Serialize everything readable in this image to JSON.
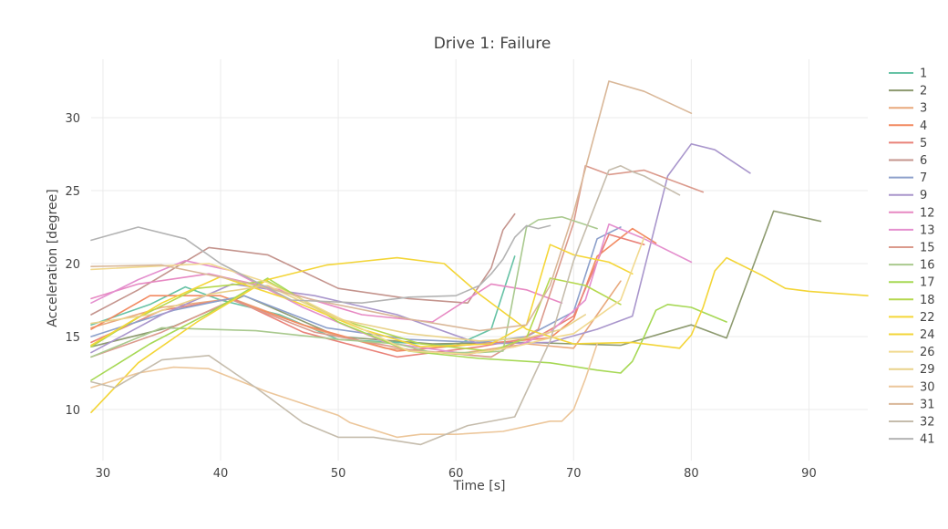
{
  "chart_data": {
    "type": "line",
    "title": "Drive 1: Failure",
    "xlabel": "Time [s]",
    "ylabel": "Acceleration [degree]",
    "xlim": [
      29,
      95
    ],
    "ylim": [
      6.5,
      34
    ],
    "xticks": [
      30,
      40,
      50,
      60,
      70,
      80,
      90
    ],
    "yticks": [
      10,
      15,
      20,
      25,
      30
    ],
    "grid": true,
    "legend": "right",
    "series": [
      {
        "name": "1",
        "color": "#66c2a5",
        "x": [
          29,
          34,
          37,
          40,
          45,
          50,
          55,
          60,
          63,
          65
        ],
        "y": [
          15.8,
          17.2,
          18.4,
          17.5,
          16.5,
          14.8,
          14.6,
          14.4,
          15.5,
          20.5
        ]
      },
      {
        "name": "2",
        "color": "#8d9a6f",
        "x": [
          29,
          36,
          42,
          50,
          58,
          66,
          70,
          74,
          80,
          83,
          87,
          91
        ],
        "y": [
          14.3,
          15.7,
          17.8,
          15.0,
          14.5,
          14.6,
          14.5,
          14.4,
          15.8,
          14.9,
          23.6,
          22.9
        ]
      },
      {
        "name": "3",
        "color": "#e8a87c",
        "x": [
          29,
          35,
          41,
          48,
          54,
          60,
          66,
          70,
          74
        ],
        "y": [
          15.6,
          17.0,
          17.6,
          15.5,
          14.2,
          13.8,
          14.5,
          14.2,
          18.8
        ]
      },
      {
        "name": "4",
        "color": "#f28a61",
        "x": [
          29,
          34,
          40,
          47,
          55,
          62,
          68,
          70,
          72,
          75,
          77
        ],
        "y": [
          15.5,
          17.8,
          17.8,
          15.8,
          14.0,
          14.5,
          14.9,
          16.2,
          20.5,
          22.4,
          21.4
        ]
      },
      {
        "name": "5",
        "color": "#e98279",
        "x": [
          29,
          35,
          41,
          47,
          55,
          62,
          67,
          70,
          73,
          76
        ],
        "y": [
          14.6,
          16.8,
          17.6,
          15.3,
          13.6,
          14.3,
          15.0,
          16.4,
          22.0,
          21.3
        ]
      },
      {
        "name": "6",
        "color": "#c4948d",
        "x": [
          29,
          33,
          39,
          44,
          50,
          56,
          61,
          63,
          64,
          65
        ],
        "y": [
          16.5,
          18.2,
          21.1,
          20.6,
          18.3,
          17.6,
          17.3,
          19.7,
          22.3,
          23.4
        ]
      },
      {
        "name": "7",
        "color": "#8da0cb",
        "x": [
          29,
          36,
          42,
          49,
          56,
          62,
          66,
          70,
          72,
          74
        ],
        "y": [
          15.0,
          16.8,
          17.8,
          15.6,
          14.8,
          14.6,
          15.0,
          16.7,
          21.7,
          22.5
        ]
      },
      {
        "name": "9",
        "color": "#a996cc",
        "x": [
          29,
          35,
          41,
          48,
          55,
          62,
          68,
          72,
          75,
          78,
          80,
          82,
          85
        ],
        "y": [
          13.9,
          16.5,
          18.6,
          17.8,
          16.5,
          14.5,
          14.6,
          15.5,
          16.4,
          26.0,
          28.2,
          27.8,
          26.2
        ]
      },
      {
        "name": "12",
        "color": "#e789c3",
        "x": [
          29,
          33,
          39,
          45,
          52,
          58,
          63,
          66,
          69
        ],
        "y": [
          17.6,
          18.6,
          19.3,
          18.2,
          16.5,
          16.0,
          18.6,
          18.2,
          17.3
        ]
      },
      {
        "name": "13",
        "color": "#e48fce",
        "x": [
          29,
          33,
          37,
          41,
          47,
          54,
          61,
          65,
          68,
          71,
          73,
          76,
          80
        ],
        "y": [
          17.3,
          18.9,
          20.2,
          19.5,
          17.0,
          14.6,
          13.8,
          14.3,
          15.3,
          17.5,
          22.7,
          21.7,
          20.1
        ]
      },
      {
        "name": "15",
        "color": "#db9a8c",
        "x": [
          29,
          35,
          41,
          48,
          56,
          63,
          67,
          70,
          71,
          73,
          76,
          79,
          81
        ],
        "y": [
          13.6,
          15.3,
          17.5,
          15.3,
          14.1,
          13.6,
          15.5,
          22.8,
          26.7,
          26.1,
          26.4,
          25.5,
          24.9
        ]
      },
      {
        "name": "16",
        "color": "#a9c98e",
        "x": [
          29,
          35,
          43,
          50,
          55,
          58,
          62,
          64,
          66,
          67,
          69,
          72
        ],
        "y": [
          13.6,
          15.6,
          15.4,
          14.8,
          14.5,
          13.9,
          13.9,
          14.0,
          22.5,
          23.0,
          23.2,
          22.4
        ]
      },
      {
        "name": "17",
        "color": "#a6d854",
        "x": [
          29,
          34,
          39,
          44,
          50,
          56,
          62,
          68,
          72,
          74,
          75,
          76,
          77,
          78,
          80,
          83
        ],
        "y": [
          12.0,
          14.5,
          16.6,
          19.0,
          16.0,
          14.0,
          13.5,
          13.2,
          12.7,
          12.5,
          13.3,
          15.0,
          16.8,
          17.2,
          17.0,
          16.0
        ]
      },
      {
        "name": "18",
        "color": "#b5d84f",
        "x": [
          29,
          33,
          38,
          44,
          50,
          57,
          63,
          66,
          68,
          71,
          74
        ],
        "y": [
          14.3,
          16.3,
          18.3,
          18.8,
          16.2,
          14.5,
          14.0,
          14.9,
          19.0,
          18.5,
          17.2
        ]
      },
      {
        "name": "22",
        "color": "#f5d638",
        "x": [
          29,
          35,
          40,
          46,
          52,
          57,
          63,
          66,
          68,
          70,
          73,
          75
        ],
        "y": [
          14.4,
          17.3,
          19.1,
          17.5,
          15.5,
          14.3,
          14.5,
          15.8,
          21.3,
          20.6,
          20.1,
          19.3
        ]
      },
      {
        "name": "24",
        "color": "#f3d537",
        "x": [
          29,
          33,
          38,
          44,
          49,
          55,
          59,
          62,
          66,
          70,
          75,
          79,
          80,
          81,
          82,
          83,
          86,
          88,
          90,
          95
        ],
        "y": [
          9.8,
          13.2,
          16.0,
          18.9,
          19.9,
          20.4,
          20.0,
          17.9,
          15.5,
          14.5,
          14.6,
          14.2,
          15.1,
          17.0,
          19.5,
          20.4,
          19.2,
          18.3,
          18.1,
          17.8
        ]
      },
      {
        "name": "26",
        "color": "#f1d98f",
        "x": [
          29,
          34,
          39,
          44,
          50,
          56,
          61,
          65,
          68,
          70,
          74,
          76
        ],
        "y": [
          19.6,
          19.8,
          20.0,
          18.7,
          16.3,
          14.0,
          13.8,
          14.3,
          14.9,
          15.2,
          17.5,
          21.8
        ]
      },
      {
        "name": "29",
        "color": "#e9d28a",
        "x": [
          29,
          34,
          39,
          44,
          50,
          56,
          62,
          66,
          69,
          71
        ],
        "y": [
          15.9,
          16.5,
          17.9,
          18.5,
          16.2,
          15.2,
          14.7,
          14.9,
          15.5,
          16.5
        ]
      },
      {
        "name": "30",
        "color": "#ecc69a",
        "x": [
          29,
          33,
          36,
          39,
          44,
          50,
          51,
          55,
          57,
          60,
          64,
          68,
          69,
          70,
          71,
          72
        ],
        "y": [
          11.5,
          12.5,
          12.9,
          12.8,
          11.2,
          9.6,
          9.1,
          8.1,
          8.3,
          8.3,
          8.5,
          9.2,
          9.2,
          10.0,
          12.1,
          14.5
        ]
      },
      {
        "name": "31",
        "color": "#d9b798",
        "x": [
          29,
          35,
          41,
          48,
          56,
          62,
          66,
          68,
          70,
          72,
          73,
          76,
          80
        ],
        "y": [
          19.8,
          19.9,
          18.9,
          17.5,
          16.2,
          15.4,
          15.8,
          18.5,
          23.5,
          29.5,
          32.5,
          31.8,
          30.3
        ]
      },
      {
        "name": "32",
        "color": "#c5bcac",
        "x": [
          29,
          31,
          35,
          39,
          43,
          47,
          50,
          53,
          57,
          61,
          65,
          68,
          70,
          73,
          74,
          75,
          76,
          79
        ],
        "y": [
          11.9,
          11.5,
          13.4,
          13.7,
          11.5,
          9.1,
          8.1,
          8.1,
          7.6,
          8.9,
          9.5,
          14.7,
          20.2,
          26.4,
          26.7,
          26.3,
          26.0,
          24.7
        ]
      },
      {
        "name": "41",
        "color": "#b3b3b3",
        "x": [
          29,
          33,
          37,
          40,
          46,
          52,
          56,
          60,
          62,
          63,
          64,
          65,
          66,
          67,
          68
        ],
        "y": [
          21.6,
          22.5,
          21.7,
          20.0,
          17.5,
          17.3,
          17.7,
          17.8,
          18.5,
          19.3,
          20.3,
          21.8,
          22.6,
          22.4,
          22.6
        ]
      }
    ]
  }
}
